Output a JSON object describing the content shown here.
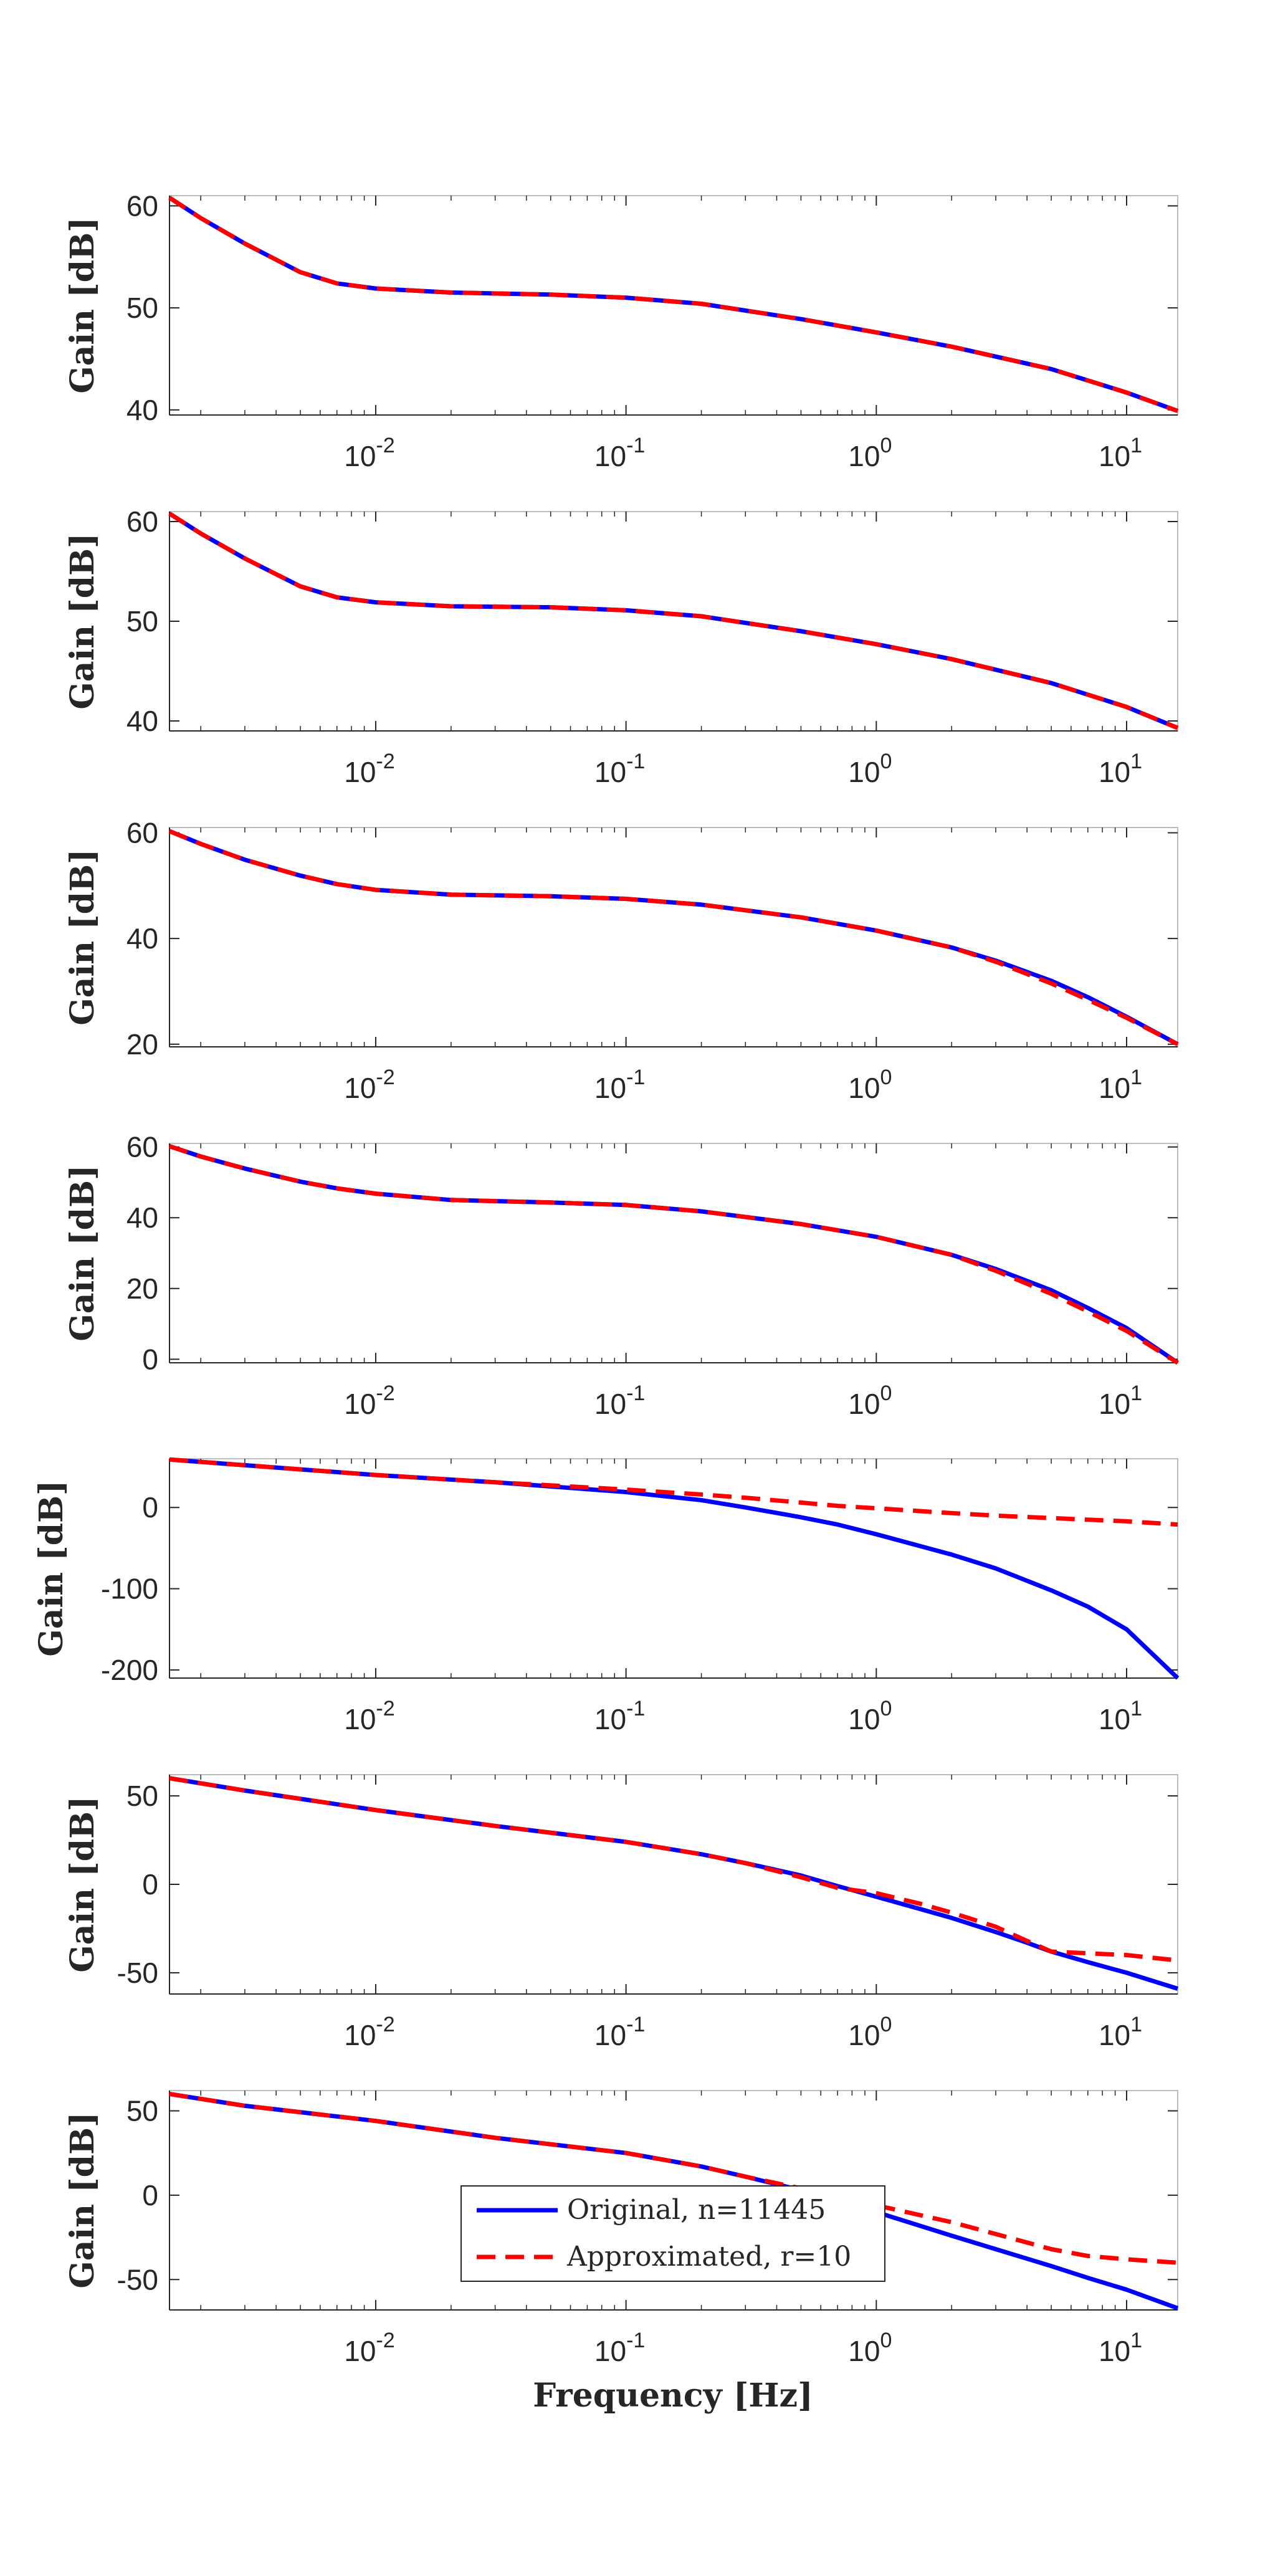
{
  "figure": {
    "xlabel": "Frequency [Hz]",
    "ylabel": "Gain [dB]",
    "xticks": [
      0.01,
      0.1,
      1,
      10
    ],
    "legend": {
      "entries": [
        "Original, n=11445",
        "Approximated, r=10"
      ],
      "placement": "center-bottom of last panel"
    }
  },
  "colors": {
    "original": "#0000ff",
    "approximated": "#ff0000",
    "axes": "#262626"
  },
  "chart_data": [
    {
      "type": "line",
      "xscale": "log",
      "xlim": [
        0.0015,
        16
      ],
      "ylim": [
        39.5,
        61
      ],
      "yticks": [
        40,
        50,
        60
      ],
      "ylabel": "Gain [dB]",
      "grid": false,
      "x": [
        0.0015,
        0.002,
        0.003,
        0.005,
        0.007,
        0.01,
        0.02,
        0.05,
        0.1,
        0.2,
        0.5,
        1,
        2,
        5,
        10,
        16
      ],
      "series": [
        {
          "name": "Original, n=11445",
          "values": [
            60.8,
            58.8,
            56.3,
            53.5,
            52.4,
            51.9,
            51.5,
            51.3,
            51.0,
            50.4,
            48.9,
            47.6,
            46.2,
            44.0,
            41.7,
            39.9
          ]
        },
        {
          "name": "Approximated, r=10",
          "values": [
            60.8,
            58.8,
            56.3,
            53.5,
            52.4,
            51.9,
            51.5,
            51.3,
            51.0,
            50.4,
            48.9,
            47.6,
            46.2,
            44.0,
            41.7,
            39.9
          ]
        }
      ]
    },
    {
      "type": "line",
      "xscale": "log",
      "xlim": [
        0.0015,
        16
      ],
      "ylim": [
        39,
        61
      ],
      "yticks": [
        40,
        50,
        60
      ],
      "ylabel": "Gain [dB]",
      "grid": false,
      "x": [
        0.0015,
        0.002,
        0.003,
        0.005,
        0.007,
        0.01,
        0.02,
        0.05,
        0.1,
        0.2,
        0.5,
        1,
        2,
        5,
        10,
        16
      ],
      "series": [
        {
          "name": "Original, n=11445",
          "values": [
            60.8,
            58.8,
            56.3,
            53.5,
            52.4,
            51.9,
            51.5,
            51.4,
            51.1,
            50.5,
            49.0,
            47.7,
            46.2,
            43.8,
            41.4,
            39.3
          ]
        },
        {
          "name": "Approximated, r=10",
          "values": [
            60.8,
            58.8,
            56.3,
            53.5,
            52.4,
            51.9,
            51.5,
            51.4,
            51.1,
            50.5,
            49.0,
            47.7,
            46.2,
            43.8,
            41.4,
            39.3
          ]
        }
      ]
    },
    {
      "type": "line",
      "xscale": "log",
      "xlim": [
        0.0015,
        16
      ],
      "ylim": [
        19.5,
        61
      ],
      "yticks": [
        20,
        40,
        60
      ],
      "ylabel": "Gain [dB]",
      "grid": false,
      "x": [
        0.0015,
        0.002,
        0.003,
        0.005,
        0.007,
        0.01,
        0.02,
        0.05,
        0.1,
        0.2,
        0.5,
        1,
        2,
        3,
        5,
        7,
        10,
        16
      ],
      "series": [
        {
          "name": "Original, n=11445",
          "values": [
            60.3,
            57.9,
            54.9,
            51.9,
            50.3,
            49.2,
            48.3,
            48.0,
            47.5,
            46.4,
            44.0,
            41.5,
            38.3,
            35.8,
            32.0,
            28.9,
            25.2,
            20.0
          ]
        },
        {
          "name": "Approximated, r=10",
          "values": [
            60.3,
            57.9,
            54.9,
            51.9,
            50.3,
            49.2,
            48.3,
            48.0,
            47.5,
            46.4,
            44.0,
            41.5,
            38.3,
            35.6,
            31.5,
            28.4,
            25.0,
            20.0
          ]
        }
      ]
    },
    {
      "type": "line",
      "xscale": "log",
      "xlim": [
        0.0015,
        16
      ],
      "ylim": [
        -1,
        61
      ],
      "yticks": [
        0,
        20,
        40,
        60
      ],
      "ylabel": "Gain [dB]",
      "grid": false,
      "x": [
        0.0015,
        0.002,
        0.003,
        0.005,
        0.007,
        0.01,
        0.02,
        0.05,
        0.1,
        0.2,
        0.5,
        1,
        2,
        3,
        5,
        7,
        10,
        16
      ],
      "series": [
        {
          "name": "Original, n=11445",
          "values": [
            60.2,
            57.3,
            53.9,
            50.2,
            48.3,
            46.8,
            45.0,
            44.3,
            43.6,
            41.8,
            38.2,
            34.6,
            29.5,
            25.5,
            19.5,
            14.5,
            8.8,
            -1.0
          ]
        },
        {
          "name": "Approximated, r=10",
          "values": [
            60.2,
            57.3,
            53.9,
            50.2,
            48.3,
            46.8,
            45.0,
            44.3,
            43.6,
            41.8,
            38.2,
            34.6,
            29.5,
            25.0,
            18.5,
            13.5,
            8.0,
            -1.0
          ]
        }
      ]
    },
    {
      "type": "line",
      "xscale": "log",
      "xlim": [
        0.0015,
        16
      ],
      "ylim": [
        -210,
        60
      ],
      "yticks": [
        -200,
        -100,
        0
      ],
      "ylabel": "Gain [dB]",
      "grid": false,
      "x": [
        0.0015,
        0.003,
        0.01,
        0.03,
        0.1,
        0.2,
        0.3,
        0.5,
        0.7,
        1,
        2,
        3,
        5,
        7,
        10,
        16
      ],
      "series": [
        {
          "name": "Original, n=11445",
          "values": [
            59,
            52,
            40,
            31,
            19,
            9,
            0,
            -12,
            -21,
            -33,
            -58,
            -75,
            -102,
            -122,
            -150,
            -210
          ]
        },
        {
          "name": "Approximated, r=10",
          "values": [
            59,
            52,
            40,
            31,
            22,
            16,
            12,
            6,
            2,
            -1,
            -7,
            -10,
            -13,
            -15,
            -17,
            -21
          ]
        }
      ]
    },
    {
      "type": "line",
      "xscale": "log",
      "xlim": [
        0.0015,
        16
      ],
      "ylim": [
        -62,
        62
      ],
      "yticks": [
        -50,
        0,
        50
      ],
      "ylabel": "Gain [dB]",
      "grid": false,
      "x": [
        0.0015,
        0.003,
        0.01,
        0.03,
        0.1,
        0.2,
        0.3,
        0.5,
        0.7,
        1,
        1.5,
        2,
        3,
        4,
        5,
        7,
        10,
        16
      ],
      "series": [
        {
          "name": "Original, n=11445",
          "values": [
            60,
            53,
            42,
            33,
            24,
            17,
            12,
            5,
            -1,
            -7,
            -14,
            -19,
            -27,
            -33,
            -38,
            -44,
            -50,
            -59
          ]
        },
        {
          "name": "Approximated, r=10",
          "values": [
            60,
            53,
            42,
            33,
            24,
            17,
            12,
            4,
            -2,
            -5,
            -11,
            -16,
            -24,
            -32,
            -38,
            -39,
            -40,
            -43
          ]
        }
      ]
    },
    {
      "type": "line",
      "xscale": "log",
      "xlim": [
        0.0015,
        16
      ],
      "ylim": [
        -68,
        62
      ],
      "yticks": [
        -50,
        0,
        50
      ],
      "ylabel": "Gain [dB]",
      "grid": false,
      "x": [
        0.0015,
        0.003,
        0.01,
        0.03,
        0.1,
        0.2,
        0.3,
        0.5,
        0.7,
        1,
        2,
        3,
        5,
        7,
        10,
        16
      ],
      "series": [
        {
          "name": "Original, n=11445",
          "values": [
            60,
            53,
            44,
            34,
            25,
            17,
            11,
            3,
            -3,
            -10,
            -24,
            -32,
            -42,
            -49,
            -56,
            -67
          ]
        },
        {
          "name": "Approximated, r=10",
          "values": [
            60,
            53,
            44,
            34,
            25,
            17,
            11,
            4,
            0,
            -6,
            -16,
            -23,
            -32,
            -36,
            -38,
            -40
          ]
        }
      ]
    }
  ]
}
